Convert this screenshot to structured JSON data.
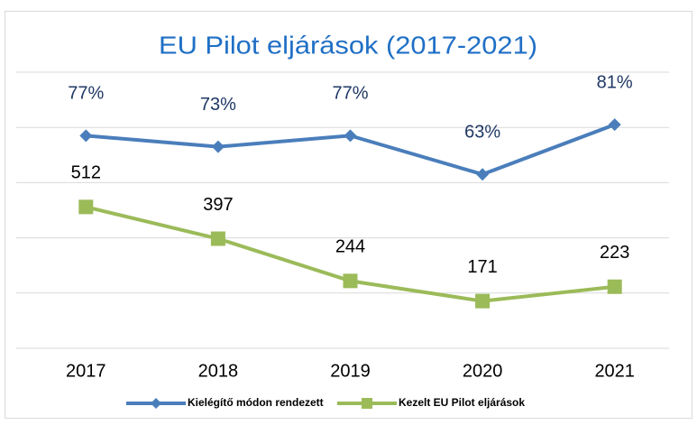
{
  "chart_data": {
    "type": "line",
    "title": "EU Pilot eljárások (2017-2021)",
    "categories": [
      "2017",
      "2018",
      "2019",
      "2020",
      "2021"
    ],
    "series": [
      {
        "name": "Kielégítő módon rendezett",
        "color": "#4a7ebb",
        "axis": "y2",
        "marker": "diamond",
        "values": [
          77,
          73,
          77,
          63,
          81
        ],
        "value_labels": [
          "77%",
          "73%",
          "77%",
          "63%",
          "81%"
        ]
      },
      {
        "name": "Kezelt EU Pilot eljárások",
        "color": "#9bbb59",
        "marker": "square",
        "values": [
          512,
          397,
          244,
          171,
          223
        ]
      }
    ],
    "ylim": [
      0,
      1000
    ],
    "yticks": [
      0,
      200,
      400,
      600,
      800,
      1000
    ],
    "y2lim": [
      0,
      100
    ],
    "grid": true,
    "legend": "bottom"
  }
}
